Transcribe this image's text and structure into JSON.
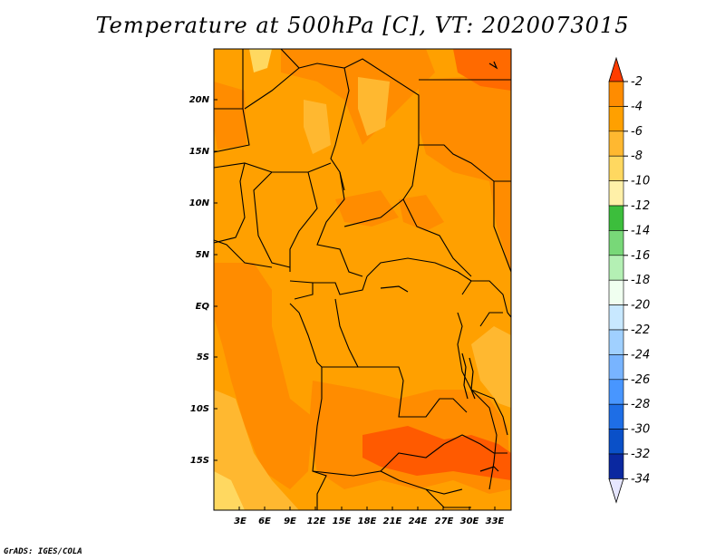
{
  "title": "Temperature at 500hPa [C], VT: 2020073015",
  "credit": "GrADS: IGES/COLA",
  "map": {
    "lat_labels": [
      "20N",
      "15N",
      "10N",
      "5N",
      "EQ",
      "5S",
      "10S",
      "15S"
    ],
    "lon_labels": [
      "3E",
      "6E",
      "9E",
      "12E",
      "15E",
      "18E",
      "21E",
      "24E",
      "27E",
      "30E",
      "33E"
    ]
  },
  "colorbar": {
    "labels": [
      "-2",
      "-4",
      "-6",
      "-8",
      "-10",
      "-12",
      "-14",
      "-16",
      "-18",
      "-20",
      "-22",
      "-24",
      "-26",
      "-28",
      "-30",
      "-32",
      "-34"
    ],
    "colors": [
      "#ff5a00",
      "#ff8c00",
      "#ffa000",
      "#ffb830",
      "#ffd860",
      "#fff0a8",
      "#3cbe3c",
      "#78d878",
      "#b4f0b4",
      "#f0fff0",
      "#c8e8ff",
      "#a0d0ff",
      "#78b4ff",
      "#4896ff",
      "#1e6ee6",
      "#0a50c8",
      "#0a28a0",
      "#000060"
    ],
    "top_arrow_color": "#ff3c00",
    "bottom_arrow_color": "#e6e6ff"
  },
  "colors": {
    "base": "#ffa000",
    "warm": "#ff8c00",
    "warmer": "#ff5a00",
    "cool": "#ffb830",
    "coolest": "#ffd860",
    "border": "#000000"
  }
}
